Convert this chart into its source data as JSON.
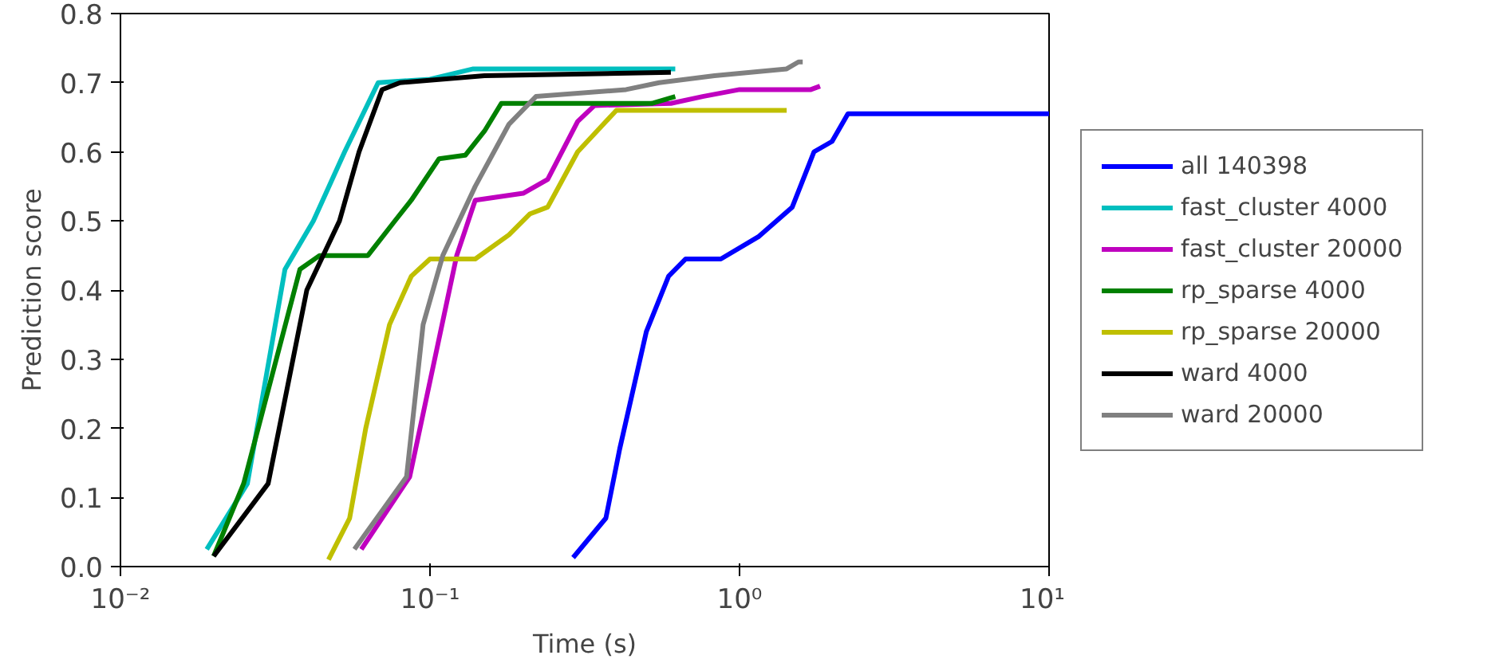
{
  "chart_data": {
    "type": "line",
    "xlabel": "Time (s)",
    "ylabel": "Prediction score",
    "log": "x",
    "xlim": [
      0.01,
      10
    ],
    "ylim": [
      0,
      0.8
    ],
    "xticks": [
      {
        "value": 0.01,
        "label": "10⁻²"
      },
      {
        "value": 0.1,
        "label": "10⁻¹"
      },
      {
        "value": 1,
        "label": "10⁰"
      },
      {
        "value": 10,
        "label": "10¹"
      }
    ],
    "yticks": [
      {
        "value": 0,
        "label": "0.0"
      },
      0.1,
      0.2,
      0.3,
      0.4,
      0.5,
      0.6,
      0.7,
      0.8
    ],
    "grid": false,
    "legend": "right",
    "marker": "none",
    "line_style": "solid",
    "series": [
      {
        "name": "all 140398",
        "color": "#0000ff",
        "x": [
          0.29,
          0.37,
          0.41,
          0.5,
          0.59,
          0.67,
          0.87,
          1.15,
          1.48,
          1.74,
          1.99,
          2.24,
          10
        ],
        "values": [
          0.013,
          0.07,
          0.17,
          0.34,
          0.42,
          0.445,
          0.445,
          0.477,
          0.52,
          0.6,
          0.615,
          0.655,
          0.655
        ]
      },
      {
        "name": "fast_cluster 4000",
        "color": "#00bfbf",
        "x": [
          0.019,
          0.0257,
          0.034,
          0.042,
          0.053,
          0.068,
          0.1,
          0.138,
          0.62
        ],
        "values": [
          0.025,
          0.12,
          0.43,
          0.5,
          0.6,
          0.7,
          0.705,
          0.72,
          0.72
        ]
      },
      {
        "name": "fast_cluster 20000",
        "color": "#bf00bf",
        "x": [
          0.06,
          0.086,
          0.122,
          0.14,
          0.2,
          0.24,
          0.3,
          0.34,
          0.6,
          0.76,
          1.0,
          1.7,
          1.82
        ],
        "values": [
          0.025,
          0.13,
          0.45,
          0.53,
          0.54,
          0.56,
          0.644,
          0.667,
          0.67,
          0.68,
          0.69,
          0.69,
          0.695
        ]
      },
      {
        "name": "rp_sparse 4000",
        "color": "#008000",
        "x": [
          0.02,
          0.025,
          0.038,
          0.044,
          0.063,
          0.077,
          0.087,
          0.107,
          0.13,
          0.15,
          0.17,
          0.52,
          0.62
        ],
        "values": [
          0.015,
          0.12,
          0.43,
          0.45,
          0.45,
          0.5,
          0.53,
          0.59,
          0.595,
          0.63,
          0.67,
          0.67,
          0.68
        ]
      },
      {
        "name": "rp_sparse 20000",
        "color": "#bfbf00",
        "x": [
          0.047,
          0.055,
          0.062,
          0.074,
          0.087,
          0.1,
          0.14,
          0.18,
          0.21,
          0.24,
          0.3,
          0.4,
          1.42
        ],
        "values": [
          0.01,
          0.07,
          0.2,
          0.35,
          0.42,
          0.445,
          0.445,
          0.48,
          0.51,
          0.52,
          0.6,
          0.66,
          0.66
        ]
      },
      {
        "name": "ward 4000",
        "color": "#000000",
        "x": [
          0.02,
          0.03,
          0.04,
          0.051,
          0.059,
          0.07,
          0.08,
          0.15,
          0.6
        ],
        "values": [
          0.015,
          0.12,
          0.4,
          0.5,
          0.6,
          0.69,
          0.7,
          0.71,
          0.715
        ]
      },
      {
        "name": "ward 20000",
        "color": "#808080",
        "x": [
          0.057,
          0.084,
          0.095,
          0.11,
          0.14,
          0.18,
          0.22,
          0.43,
          0.55,
          0.83,
          1.42,
          1.55,
          1.6
        ],
        "values": [
          0.025,
          0.13,
          0.35,
          0.45,
          0.55,
          0.64,
          0.68,
          0.69,
          0.7,
          0.71,
          0.72,
          0.73,
          0.73
        ]
      }
    ]
  }
}
